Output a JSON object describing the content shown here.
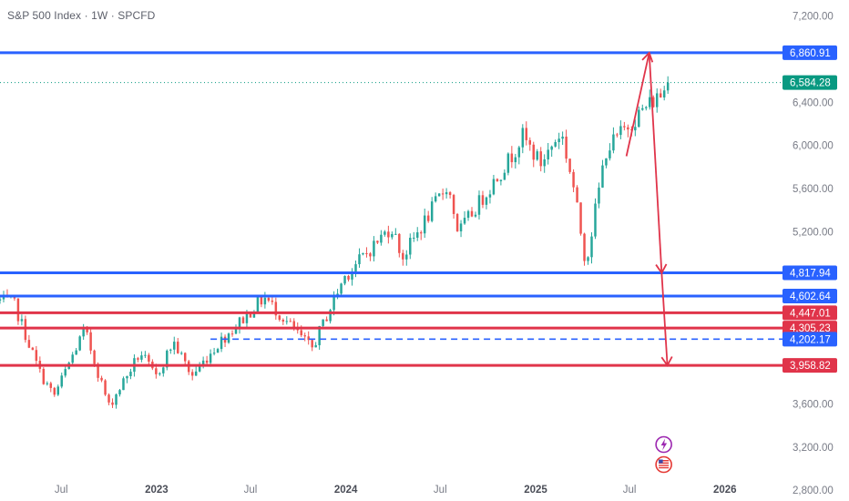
{
  "header": {
    "title": "S&P 500 Index · 1W · SPCFD"
  },
  "colors": {
    "up": "#26a69a",
    "down": "#ef5350",
    "blue_line": "#2962ff",
    "red_line": "#e0344a",
    "current_price_tag": "#089981",
    "arrow": "#e0344a",
    "axis_text": "#787b86"
  },
  "chart_data": {
    "type": "candlestick",
    "x_tick_labels": [
      "Jul",
      "2023",
      "Jul",
      "2024",
      "Jul",
      "2025",
      "Jul",
      "2026"
    ],
    "y_tick_labels": [
      "7,200.00",
      "6,400.00",
      "6,000.00",
      "5,600.00",
      "5,200.00",
      "3,600.00",
      "3,200.00",
      "2,800.00"
    ],
    "y_ticks": [
      7200,
      6400,
      6000,
      5600,
      5200,
      3600,
      3200,
      2800
    ],
    "ylim": [
      2700,
      7350
    ],
    "xlim": [
      "2022-03-05",
      "2026-04-15"
    ],
    "current_price": {
      "value": 6584.28,
      "label": "6,584.28"
    },
    "levels": [
      {
        "value": 6860.91,
        "label": "6,860.91",
        "color": "blue",
        "style": "solid"
      },
      {
        "value": 4817.94,
        "label": "4,817.94",
        "color": "blue",
        "style": "solid"
      },
      {
        "value": 4602.64,
        "label": "4,602.64",
        "color": "blue",
        "style": "solid"
      },
      {
        "value": 4447.01,
        "label": "4,447.01",
        "color": "red",
        "style": "solid"
      },
      {
        "value": 4305.23,
        "label": "4,305.23",
        "color": "red",
        "style": "solid"
      },
      {
        "value": 4202.17,
        "label": "4,202.17",
        "color": "blue",
        "style": "dashed",
        "from": "2023-04-15"
      },
      {
        "value": 3958.82,
        "label": "3,958.82",
        "color": "red",
        "style": "solid"
      }
    ],
    "path_anchors": [
      {
        "date": "2022-03-05",
        "close": 4560
      },
      {
        "date": "2022-04-01",
        "close": 4530
      },
      {
        "date": "2022-05-20",
        "close": 3900
      },
      {
        "date": "2022-06-17",
        "close": 3670
      },
      {
        "date": "2022-08-15",
        "close": 4290
      },
      {
        "date": "2022-10-01",
        "close": 3580
      },
      {
        "date": "2022-12-01",
        "close": 4080
      },
      {
        "date": "2022-12-30",
        "close": 3840
      },
      {
        "date": "2023-02-02",
        "close": 4180
      },
      {
        "date": "2023-03-10",
        "close": 3860
      },
      {
        "date": "2023-05-01",
        "close": 4170
      },
      {
        "date": "2023-07-28",
        "close": 4590
      },
      {
        "date": "2023-10-27",
        "close": 4110
      },
      {
        "date": "2023-12-29",
        "close": 4780
      },
      {
        "date": "2024-03-29",
        "close": 5250
      },
      {
        "date": "2024-04-19",
        "close": 4960
      },
      {
        "date": "2024-07-15",
        "close": 5640
      },
      {
        "date": "2024-08-05",
        "close": 5190
      },
      {
        "date": "2024-11-15",
        "close": 5900
      },
      {
        "date": "2024-12-06",
        "close": 6090
      },
      {
        "date": "2025-01-10",
        "close": 5830
      },
      {
        "date": "2025-02-19",
        "close": 6130
      },
      {
        "date": "2025-03-14",
        "close": 5640
      },
      {
        "date": "2025-04-08",
        "close": 4900
      },
      {
        "date": "2025-05-16",
        "close": 5950
      },
      {
        "date": "2025-06-27",
        "close": 6180
      },
      {
        "date": "2025-07-31",
        "close": 6350
      },
      {
        "date": "2025-08-29",
        "close": 6470
      },
      {
        "date": "2025-09-19",
        "close": 6584
      }
    ],
    "forecast_arrows": [
      {
        "from": {
          "date": "2025-06-25",
          "value": 5900
        },
        "to": {
          "date": "2025-08-08",
          "value": 6860
        }
      },
      {
        "from": {
          "date": "2025-08-08",
          "value": 6860
        },
        "to": {
          "date": "2025-09-01",
          "value": 4817
        }
      },
      {
        "from": {
          "date": "2025-09-01",
          "value": 4817
        },
        "to": {
          "date": "2025-09-12",
          "value": 3958
        }
      }
    ]
  }
}
